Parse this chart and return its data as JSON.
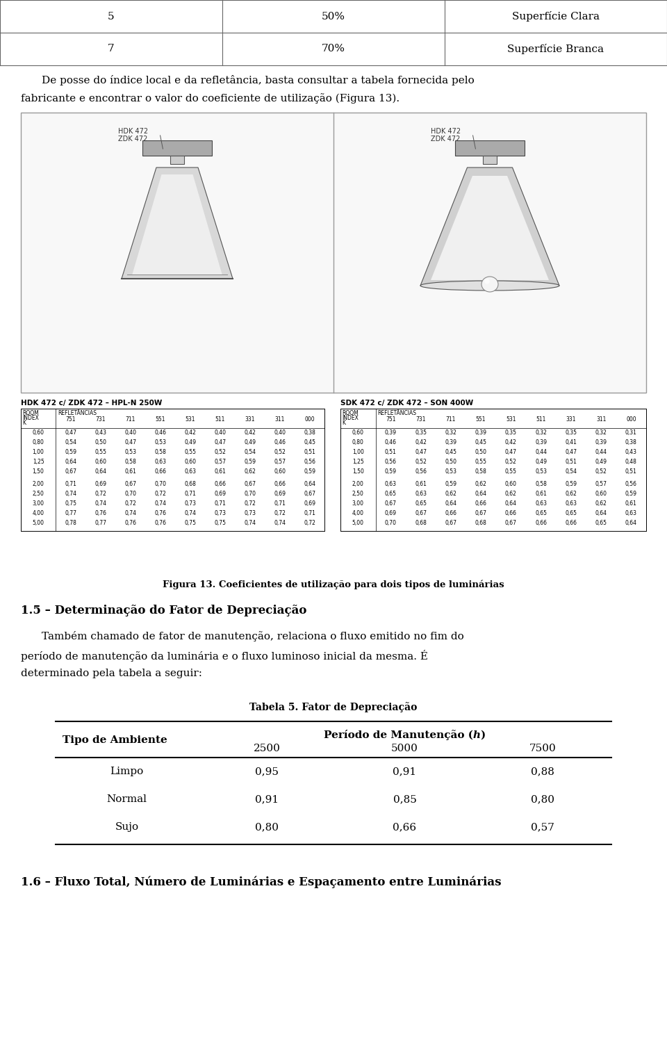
{
  "bg_color": "#ffffff",
  "top_table_rows": [
    [
      "5",
      "50%",
      "Superfície Clara"
    ],
    [
      "7",
      "70%",
      "Superfície Branca"
    ]
  ],
  "line1": "De posse do índice local e da refletância, basta consultar a tabela fornecida pelo",
  "line2": "fabricante e encontrar o valor do coeficiente de utilização (Figura 13).",
  "figura_caption": "Figura 13. Coeficientes de utilização para dois tipos de luminárias",
  "section_heading": "1.5 – Determinação do Fator de Depreciação",
  "body2_line1": "Também chamado de fator de manutenção, relaciona o fluxo emitido no fim do",
  "body2_line2": "período de manutenção da luminária e o fluxo luminoso inicial da mesma. É",
  "body2_line3": "determinado pela tabela a seguir:",
  "tabela5_title": "Tabela 5. Fator de Depreciação",
  "tabela5_header1": "Tipo de Ambiente",
  "tabela5_header2": "Período de Manutenção (ℎ)",
  "tabela5_subheaders": [
    "2500",
    "5000",
    "7500"
  ],
  "tabela5_rows": [
    [
      "Limpo",
      "0,95",
      "0,91",
      "0,88"
    ],
    [
      "Normal",
      "0,91",
      "0,85",
      "0,80"
    ],
    [
      "Sujo",
      "0,80",
      "0,66",
      "0,57"
    ]
  ],
  "section_heading_2": "1.6 – Fluxo Total, Número de Luminárias e Espaçamento entre Luminárias",
  "left_tbl_title": "HDK 472 c/ ZDK 472 – HPL-N 250W",
  "right_tbl_title": "SDK 472 c/ ZDK 472 – SON 400W",
  "left_lum_label1": "HDK 472",
  "left_lum_label2": "ZDK 472",
  "right_lum_label1": "HDK 472",
  "right_lum_label2": "ZDK 472",
  "rows_left": [
    [
      "0,60",
      "0,47",
      "0,43",
      "0,40",
      "0,46",
      "0,42",
      "0,40",
      "0,42",
      "0,40",
      "0,38"
    ],
    [
      "0,80",
      "0,54",
      "0,50",
      "0,47",
      "0,53",
      "0,49",
      "0,47",
      "0,49",
      "0,46",
      "0,45"
    ],
    [
      "1,00",
      "0,59",
      "0,55",
      "0,53",
      "0,58",
      "0,55",
      "0,52",
      "0,54",
      "0,52",
      "0,51"
    ],
    [
      "1,25",
      "0,64",
      "0,60",
      "0,58",
      "0,63",
      "0,60",
      "0,57",
      "0,59",
      "0,57",
      "0,56"
    ],
    [
      "1,50",
      "0,67",
      "0,64",
      "0,61",
      "0,66",
      "0,63",
      "0,61",
      "0,62",
      "0,60",
      "0,59"
    ],
    [
      "2,00",
      "0,71",
      "0,69",
      "0,67",
      "0,70",
      "0,68",
      "0,66",
      "0,67",
      "0,66",
      "0,64"
    ],
    [
      "2,50",
      "0,74",
      "0,72",
      "0,70",
      "0,72",
      "0,71",
      "0,69",
      "0,70",
      "0,69",
      "0,67"
    ],
    [
      "3,00",
      "0,75",
      "0,74",
      "0,72",
      "0,74",
      "0,73",
      "0,71",
      "0,72",
      "0,71",
      "0,69"
    ],
    [
      "4,00",
      "0,77",
      "0,76",
      "0,74",
      "0,76",
      "0,74",
      "0,73",
      "0,73",
      "0,72",
      "0,71"
    ],
    [
      "5,00",
      "0,78",
      "0,77",
      "0,76",
      "0,76",
      "0,75",
      "0,75",
      "0,74",
      "0,74",
      "0,72"
    ]
  ],
  "rows_right": [
    [
      "0,60",
      "0,39",
      "0,35",
      "0,32",
      "0,39",
      "0,35",
      "0,32",
      "0,35",
      "0,32",
      "0,31"
    ],
    [
      "0,80",
      "0,46",
      "0,42",
      "0,39",
      "0,45",
      "0,42",
      "0,39",
      "0,41",
      "0,39",
      "0,38"
    ],
    [
      "1,00",
      "0,51",
      "0,47",
      "0,45",
      "0,50",
      "0,47",
      "0,44",
      "0,47",
      "0,44",
      "0,43"
    ],
    [
      "1,25",
      "0,56",
      "0,52",
      "0,50",
      "0,55",
      "0,52",
      "0,49",
      "0,51",
      "0,49",
      "0,48"
    ],
    [
      "1,50",
      "0,59",
      "0,56",
      "0,53",
      "0,58",
      "0,55",
      "0,53",
      "0,54",
      "0,52",
      "0,51"
    ],
    [
      "2,00",
      "0,63",
      "0,61",
      "0,59",
      "0,62",
      "0,60",
      "0,58",
      "0,59",
      "0,57",
      "0,56"
    ],
    [
      "2,50",
      "0,65",
      "0,63",
      "0,62",
      "0,64",
      "0,62",
      "0,61",
      "0,62",
      "0,60",
      "0,59"
    ],
    [
      "3,00",
      "0,67",
      "0,65",
      "0,64",
      "0,66",
      "0,64",
      "0,63",
      "0,63",
      "0,62",
      "0,61"
    ],
    [
      "4,00",
      "0,69",
      "0,67",
      "0,66",
      "0,67",
      "0,66",
      "0,65",
      "0,65",
      "0,64",
      "0,63"
    ],
    [
      "5,00",
      "0,70",
      "0,68",
      "0,67",
      "0,68",
      "0,67",
      "0,66",
      "0,66",
      "0,65",
      "0,64"
    ]
  ]
}
